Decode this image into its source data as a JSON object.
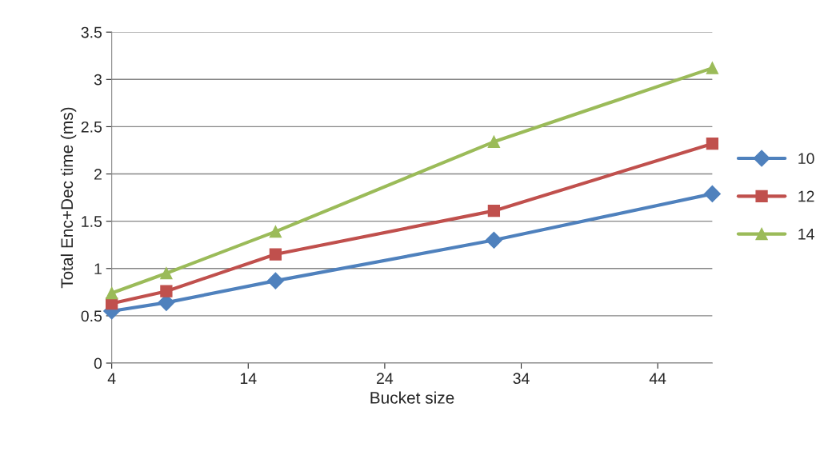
{
  "chart_data": {
    "type": "line",
    "xlabel": "Bucket size",
    "ylabel": "Total Enc+Dec time (ms)",
    "x": [
      4,
      8,
      16,
      32,
      48
    ],
    "series": [
      {
        "name": "10",
        "color": "#4f81bd",
        "marker": "diamond",
        "values": [
          0.55,
          0.64,
          0.87,
          1.3,
          1.79
        ]
      },
      {
        "name": "12",
        "color": "#c0504d",
        "marker": "square",
        "values": [
          0.63,
          0.76,
          1.15,
          1.61,
          2.32
        ]
      },
      {
        "name": "14",
        "color": "#9bbb59",
        "marker": "triangle",
        "values": [
          0.74,
          0.95,
          1.39,
          2.34,
          3.12
        ]
      }
    ],
    "xlim": [
      4,
      48
    ],
    "xticks": [
      4,
      14,
      24,
      34,
      44
    ],
    "ylim": [
      0,
      3.5
    ],
    "yticks": [
      0,
      0.5,
      1,
      1.5,
      2,
      2.5,
      3,
      3.5
    ],
    "grid": "y",
    "legend": "right",
    "line_style": "solid"
  }
}
